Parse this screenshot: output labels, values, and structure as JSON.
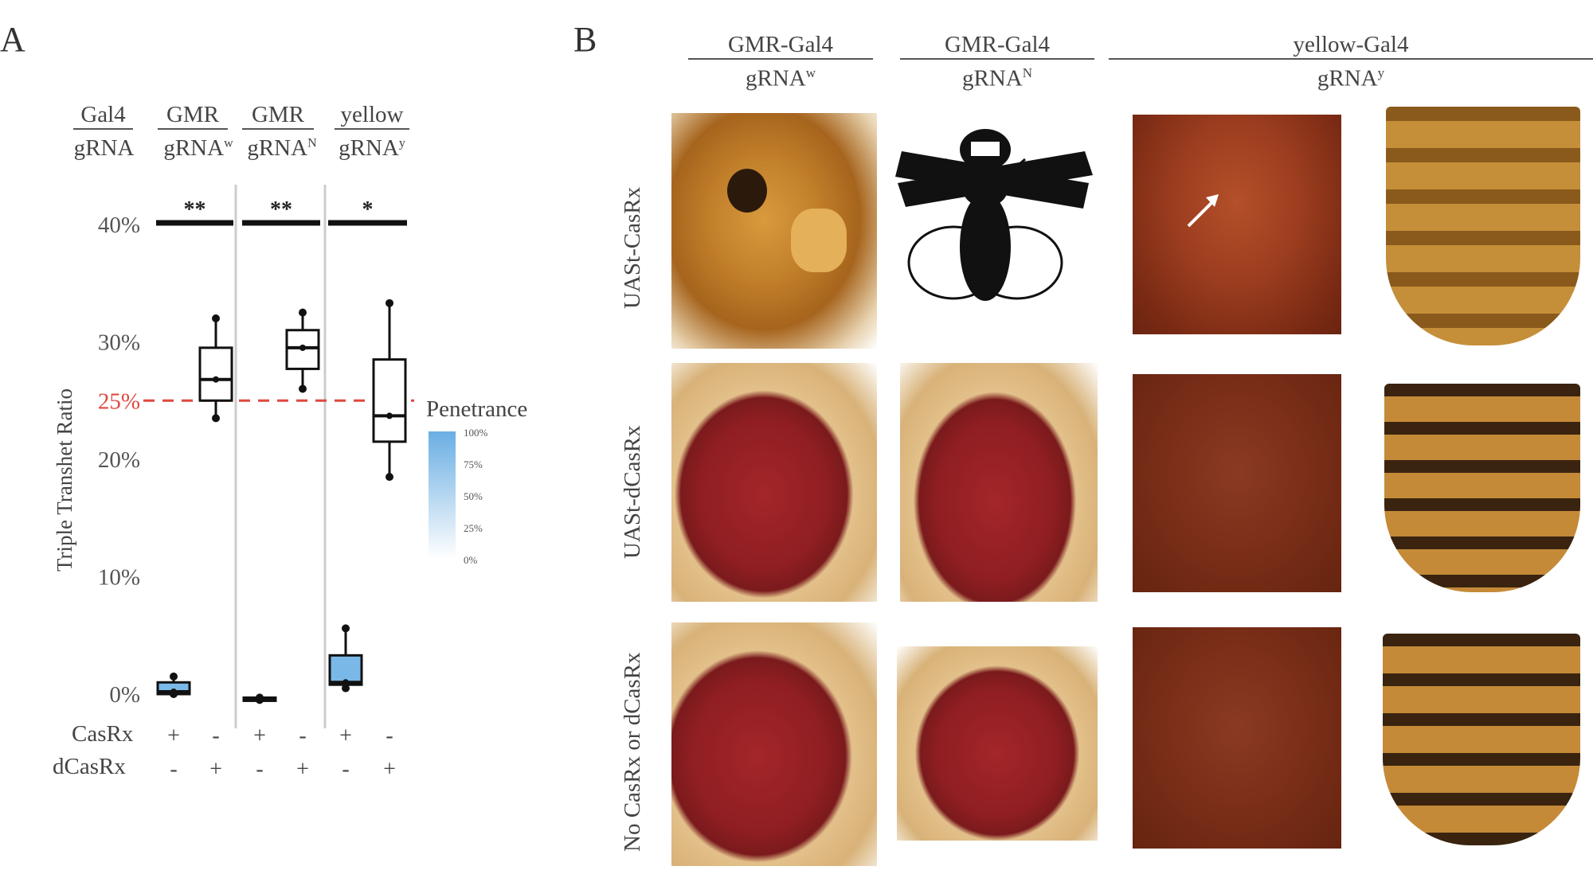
{
  "panel_a": {
    "letter": "A",
    "header_rows": {
      "row1": "Gal4",
      "row2": "gRNA"
    },
    "groups": [
      {
        "gal4": "GMR",
        "grna": "gRNA",
        "grna_sup": "w",
        "significance": "**"
      },
      {
        "gal4": "GMR",
        "grna": "gRNA",
        "grna_sup": "N",
        "significance": "**"
      },
      {
        "gal4": "yellow",
        "grna": "gRNA",
        "grna_sup": "y",
        "significance": "*"
      }
    ],
    "reference_line_label": "25%",
    "legend": {
      "title": "Penetrance",
      "ticks": [
        "100%",
        "75%",
        "50%",
        "25%",
        "0%"
      ]
    },
    "condition_rows": [
      {
        "label": "CasRx",
        "values": [
          "+",
          "-",
          "+",
          "-",
          "+",
          "-"
        ]
      },
      {
        "label": "dCasRx",
        "values": [
          "-",
          "+",
          "-",
          "+",
          "-",
          "+"
        ]
      }
    ]
  },
  "chart_data": {
    "type": "box",
    "ylabel": "Triple Transhet Ratio",
    "ylim": [
      0,
      0.4
    ],
    "y_ticks": [
      {
        "value": 0,
        "label": "0%"
      },
      {
        "value": 0.1,
        "label": "10%"
      },
      {
        "value": 0.2,
        "label": "20%"
      },
      {
        "value": 0.3,
        "label": "30%"
      },
      {
        "value": 0.4,
        "label": "40%"
      }
    ],
    "reference_line": 0.25,
    "boxes": [
      {
        "group": "GMR gRNAw",
        "condition": "CasRx",
        "min": 0.0,
        "q1": 0.0,
        "median": 0.002,
        "q3": 0.01,
        "max": 0.015,
        "penetrance": 0.6
      },
      {
        "group": "GMR gRNAw",
        "condition": "dCasRx",
        "min": 0.235,
        "q1": 0.25,
        "median": 0.268,
        "q3": 0.295,
        "max": 0.32,
        "penetrance": 0
      },
      {
        "group": "GMR gRNAN",
        "condition": "CasRx",
        "min": -0.005,
        "q1": -0.005,
        "median": -0.005,
        "q3": -0.003,
        "max": -0.003,
        "penetrance": 0.6
      },
      {
        "group": "GMR gRNAN",
        "condition": "dCasRx",
        "min": 0.26,
        "q1": 0.277,
        "median": 0.295,
        "q3": 0.31,
        "max": 0.325,
        "penetrance": 0
      },
      {
        "group": "yellow gRNAy",
        "condition": "CasRx",
        "min": 0.005,
        "q1": 0.008,
        "median": 0.01,
        "q3": 0.033,
        "max": 0.056,
        "penetrance": 0.6
      },
      {
        "group": "yellow gRNAy",
        "condition": "dCasRx",
        "min": 0.185,
        "q1": 0.215,
        "median": 0.237,
        "q3": 0.285,
        "max": 0.333,
        "penetrance": 0
      }
    ]
  },
  "panel_b": {
    "letter": "B",
    "column_headers": [
      {
        "line1": "GMR-Gal4",
        "line2": "gRNA",
        "sup": "w"
      },
      {
        "line1": "GMR-Gal4",
        "line2": "gRNA",
        "sup": "N"
      },
      {
        "line1": "yellow-Gal4",
        "line2": "gRNA",
        "sup": "y"
      }
    ],
    "row_labels": [
      "UASt-CasRx",
      "UASt-dCasRx",
      "No CasRx or dCasRx"
    ]
  }
}
